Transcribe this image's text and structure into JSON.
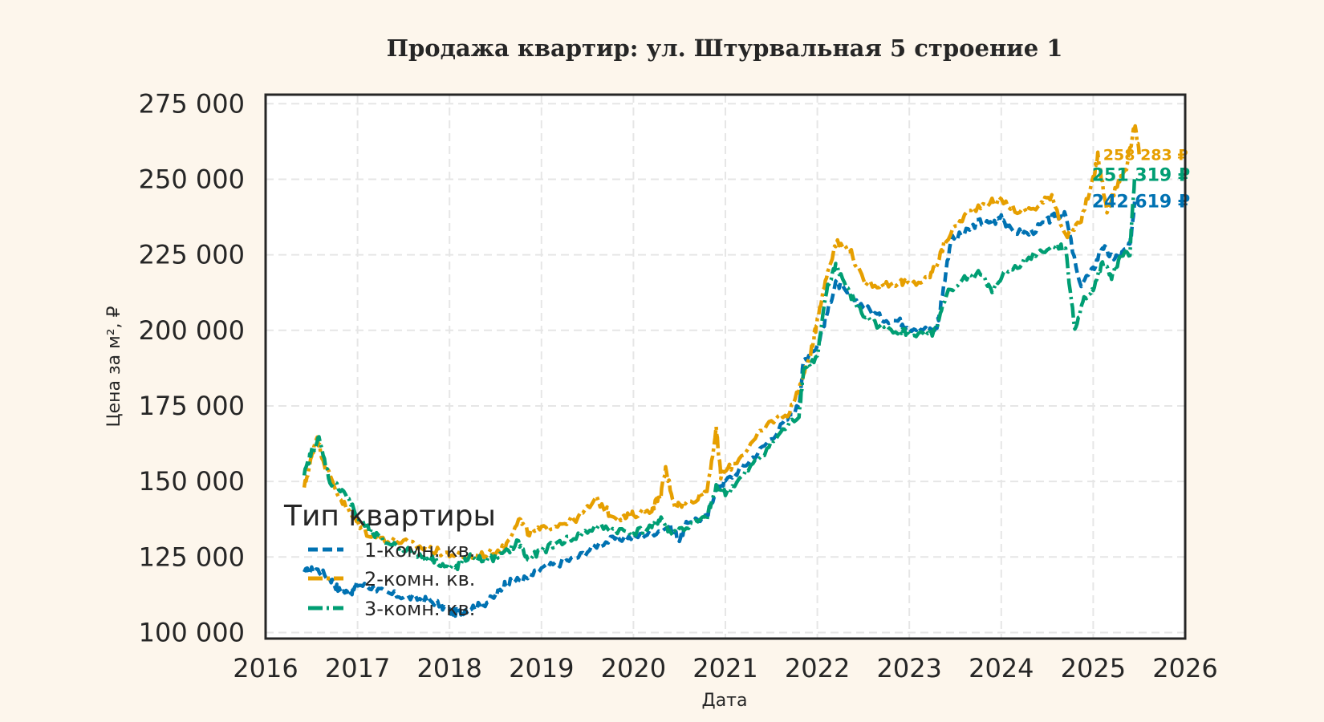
{
  "chart_data": {
    "type": "line",
    "title": "Продажа квартир: ул. Штурвальная 5 строение 1",
    "xlabel": "Дата",
    "ylabel": "Цена за м², ₽",
    "xlim": [
      2016,
      2026
    ],
    "ylim": [
      98000,
      278000
    ],
    "x_ticks": [
      "2016",
      "2017",
      "2018",
      "2019",
      "2020",
      "2021",
      "2022",
      "2023",
      "2024",
      "2025",
      "2026"
    ],
    "y_ticks": [
      "100 000",
      "125 000",
      "150 000",
      "175 000",
      "200 000",
      "225 000",
      "250 000",
      "275 000"
    ],
    "grid": true,
    "legend": {
      "title": "Тип квартиры",
      "placement": "lower-left"
    },
    "series": [
      {
        "name": "1-комн. кв.",
        "color": "#0072b2",
        "end_label": "242 619 ₽",
        "points": [
          [
            2016.42,
            120000
          ],
          [
            2016.55,
            121000
          ],
          [
            2016.7,
            118000
          ],
          [
            2016.8,
            114000
          ],
          [
            2016.92,
            113000
          ],
          [
            2017.0,
            116000
          ],
          [
            2017.15,
            115000
          ],
          [
            2017.3,
            113000
          ],
          [
            2017.5,
            112000
          ],
          [
            2017.7,
            111000
          ],
          [
            2017.85,
            110000
          ],
          [
            2018.0,
            107000
          ],
          [
            2018.1,
            106500
          ],
          [
            2018.2,
            108000
          ],
          [
            2018.35,
            109000
          ],
          [
            2018.5,
            112000
          ],
          [
            2018.6,
            116000
          ],
          [
            2018.7,
            117000
          ],
          [
            2018.85,
            118000
          ],
          [
            2019.0,
            121000
          ],
          [
            2019.2,
            123000
          ],
          [
            2019.4,
            125000
          ],
          [
            2019.6,
            129000
          ],
          [
            2019.8,
            131000
          ],
          [
            2020.0,
            131500
          ],
          [
            2020.2,
            133000
          ],
          [
            2020.4,
            135000
          ],
          [
            2020.5,
            131000
          ],
          [
            2020.6,
            137000
          ],
          [
            2020.8,
            138000
          ],
          [
            2020.9,
            148000
          ],
          [
            2021.0,
            150000
          ],
          [
            2021.2,
            155000
          ],
          [
            2021.4,
            161000
          ],
          [
            2021.6,
            168000
          ],
          [
            2021.8,
            175000
          ],
          [
            2021.85,
            190000
          ],
          [
            2022.0,
            195000
          ],
          [
            2022.1,
            205000
          ],
          [
            2022.2,
            216000
          ],
          [
            2022.3,
            213000
          ],
          [
            2022.5,
            208000
          ],
          [
            2022.7,
            204000
          ],
          [
            2022.9,
            203000
          ],
          [
            2023.0,
            201000
          ],
          [
            2023.2,
            200000
          ],
          [
            2023.3,
            201000
          ],
          [
            2023.35,
            210000
          ],
          [
            2023.45,
            230000
          ],
          [
            2023.6,
            232000
          ],
          [
            2023.75,
            236000
          ],
          [
            2023.9,
            235000
          ],
          [
            2024.0,
            238000
          ],
          [
            2024.1,
            233000
          ],
          [
            2024.3,
            232000
          ],
          [
            2024.5,
            236000
          ],
          [
            2024.6,
            238000
          ],
          [
            2024.7,
            238000
          ],
          [
            2024.85,
            215000
          ],
          [
            2025.0,
            220000
          ],
          [
            2025.1,
            228000
          ],
          [
            2025.2,
            224000
          ],
          [
            2025.3,
            225000
          ],
          [
            2025.4,
            228000
          ],
          [
            2025.45,
            242619
          ]
        ]
      },
      {
        "name": "2-комн. кв.",
        "color": "#e69f00",
        "end_label": "258 283 ₽",
        "points": [
          [
            2016.42,
            148000
          ],
          [
            2016.5,
            158000
          ],
          [
            2016.55,
            165000
          ],
          [
            2016.65,
            155000
          ],
          [
            2016.8,
            145000
          ],
          [
            2016.95,
            138000
          ],
          [
            2017.1,
            133000
          ],
          [
            2017.3,
            131000
          ],
          [
            2017.5,
            130000
          ],
          [
            2017.7,
            128000
          ],
          [
            2017.85,
            127000
          ],
          [
            2018.0,
            126000
          ],
          [
            2018.2,
            125000
          ],
          [
            2018.4,
            126000
          ],
          [
            2018.6,
            128000
          ],
          [
            2018.75,
            138000
          ],
          [
            2018.85,
            133000
          ],
          [
            2019.0,
            134000
          ],
          [
            2019.2,
            136000
          ],
          [
            2019.4,
            138000
          ],
          [
            2019.6,
            144000
          ],
          [
            2019.75,
            139000
          ],
          [
            2019.9,
            138000
          ],
          [
            2020.0,
            139000
          ],
          [
            2020.2,
            141000
          ],
          [
            2020.3,
            146000
          ],
          [
            2020.35,
            154000
          ],
          [
            2020.45,
            142000
          ],
          [
            2020.6,
            143000
          ],
          [
            2020.8,
            147000
          ],
          [
            2020.9,
            167000
          ],
          [
            2020.95,
            152000
          ],
          [
            2021.1,
            156000
          ],
          [
            2021.3,
            163000
          ],
          [
            2021.5,
            170000
          ],
          [
            2021.7,
            173000
          ],
          [
            2021.85,
            185000
          ],
          [
            2021.95,
            195000
          ],
          [
            2022.0,
            204000
          ],
          [
            2022.1,
            218000
          ],
          [
            2022.2,
            229000
          ],
          [
            2022.35,
            227000
          ],
          [
            2022.5,
            216000
          ],
          [
            2022.7,
            215000
          ],
          [
            2022.9,
            216000
          ],
          [
            2023.0,
            215000
          ],
          [
            2023.2,
            217000
          ],
          [
            2023.3,
            222000
          ],
          [
            2023.4,
            230000
          ],
          [
            2023.6,
            238000
          ],
          [
            2023.8,
            242000
          ],
          [
            2024.0,
            243000
          ],
          [
            2024.2,
            239000
          ],
          [
            2024.4,
            241000
          ],
          [
            2024.55,
            245000
          ],
          [
            2024.7,
            231000
          ],
          [
            2024.85,
            235000
          ],
          [
            2025.0,
            250000
          ],
          [
            2025.05,
            258000
          ],
          [
            2025.15,
            239000
          ],
          [
            2025.25,
            248000
          ],
          [
            2025.35,
            252000
          ],
          [
            2025.45,
            268000
          ],
          [
            2025.5,
            258283
          ]
        ]
      },
      {
        "name": "3-комн. кв.",
        "color": "#009e73",
        "end_label": "251 319 ₽",
        "points": [
          [
            2016.42,
            152000
          ],
          [
            2016.5,
            160000
          ],
          [
            2016.58,
            164000
          ],
          [
            2016.7,
            150000
          ],
          [
            2016.85,
            147000
          ],
          [
            2017.0,
            138000
          ],
          [
            2017.15,
            133000
          ],
          [
            2017.3,
            130000
          ],
          [
            2017.5,
            128000
          ],
          [
            2017.7,
            125000
          ],
          [
            2017.85,
            124000
          ],
          [
            2018.0,
            121000
          ],
          [
            2018.1,
            122000
          ],
          [
            2018.2,
            125000
          ],
          [
            2018.4,
            124000
          ],
          [
            2018.6,
            126000
          ],
          [
            2018.75,
            130000
          ],
          [
            2018.85,
            124000
          ],
          [
            2019.0,
            127000
          ],
          [
            2019.2,
            130000
          ],
          [
            2019.4,
            132000
          ],
          [
            2019.6,
            135000
          ],
          [
            2019.8,
            134000
          ],
          [
            2020.0,
            133000
          ],
          [
            2020.2,
            135000
          ],
          [
            2020.3,
            138000
          ],
          [
            2020.4,
            133000
          ],
          [
            2020.6,
            135000
          ],
          [
            2020.8,
            138000
          ],
          [
            2020.9,
            148000
          ],
          [
            2021.0,
            146000
          ],
          [
            2021.2,
            152000
          ],
          [
            2021.4,
            159000
          ],
          [
            2021.6,
            166000
          ],
          [
            2021.8,
            172000
          ],
          [
            2021.85,
            187000
          ],
          [
            2022.0,
            191000
          ],
          [
            2022.1,
            213000
          ],
          [
            2022.2,
            222000
          ],
          [
            2022.35,
            212000
          ],
          [
            2022.5,
            205000
          ],
          [
            2022.7,
            201000
          ],
          [
            2022.9,
            200000
          ],
          [
            2023.0,
            199000
          ],
          [
            2023.2,
            198000
          ],
          [
            2023.3,
            200000
          ],
          [
            2023.4,
            212000
          ],
          [
            2023.6,
            217000
          ],
          [
            2023.8,
            219000
          ],
          [
            2023.9,
            212000
          ],
          [
            2024.0,
            218000
          ],
          [
            2024.2,
            222000
          ],
          [
            2024.4,
            226000
          ],
          [
            2024.6,
            228000
          ],
          [
            2024.7,
            227000
          ],
          [
            2024.8,
            200000
          ],
          [
            2024.9,
            210000
          ],
          [
            2025.0,
            214000
          ],
          [
            2025.1,
            222000
          ],
          [
            2025.2,
            218000
          ],
          [
            2025.3,
            224000
          ],
          [
            2025.4,
            226000
          ],
          [
            2025.45,
            251319
          ]
        ]
      }
    ]
  }
}
